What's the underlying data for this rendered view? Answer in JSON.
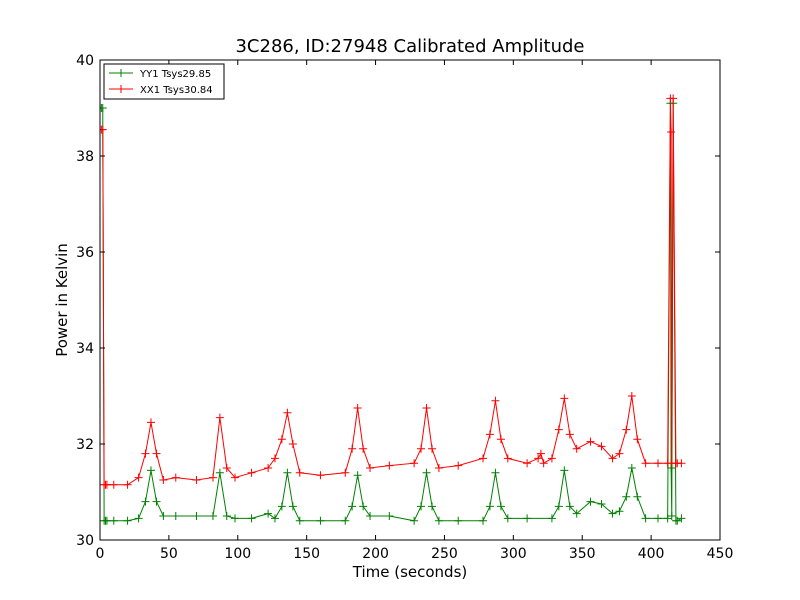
{
  "chart_data": {
    "type": "line",
    "title": "3C286, ID:27948 Calibrated Amplitude",
    "xlabel": "Time (seconds)",
    "ylabel": "Power in Kelvin",
    "xlim": [
      0,
      450
    ],
    "ylim": [
      30,
      40
    ],
    "xticks": [
      0,
      50,
      100,
      150,
      200,
      250,
      300,
      350,
      400,
      450
    ],
    "yticks": [
      30,
      32,
      34,
      36,
      38,
      40
    ],
    "grid": false,
    "legend_position": "top-left",
    "series": [
      {
        "name": "YY1 Tsys29.85",
        "color": "#008000",
        "marker": "+",
        "x": [
          1,
          2,
          3,
          4,
          5,
          10,
          20,
          28,
          33,
          37,
          41,
          46,
          55,
          70,
          82,
          87,
          92,
          98,
          110,
          122,
          127,
          132,
          136,
          140,
          145,
          160,
          178,
          183,
          187,
          191,
          196,
          210,
          228,
          233,
          237,
          241,
          246,
          260,
          278,
          283,
          287,
          291,
          296,
          310,
          328,
          333,
          337,
          341,
          346,
          356,
          364,
          372,
          377,
          382,
          386,
          390,
          396,
          405,
          412,
          414,
          414.5,
          415,
          416,
          418,
          419,
          422
        ],
        "y": [
          39.0,
          39.0,
          30.4,
          30.4,
          30.4,
          30.4,
          30.4,
          30.45,
          30.8,
          31.45,
          30.8,
          30.5,
          30.5,
          30.5,
          30.5,
          31.4,
          30.5,
          30.45,
          30.45,
          30.55,
          30.45,
          30.7,
          31.4,
          30.7,
          30.4,
          30.4,
          30.4,
          30.7,
          31.35,
          30.7,
          30.5,
          30.5,
          30.4,
          30.7,
          31.4,
          30.7,
          30.4,
          30.4,
          30.4,
          30.7,
          31.4,
          30.7,
          30.45,
          30.45,
          30.45,
          30.7,
          31.45,
          30.7,
          30.55,
          30.8,
          30.75,
          30.55,
          30.6,
          30.9,
          31.5,
          30.9,
          30.45,
          30.45,
          30.45,
          39.1,
          31.5,
          30.5,
          39.1,
          30.4,
          30.4,
          30.45
        ]
      },
      {
        "name": "XX1 Tsys30.84",
        "color": "#ff0000",
        "marker": "+",
        "x": [
          1,
          2,
          3,
          4,
          5,
          10,
          20,
          28,
          33,
          37,
          41,
          46,
          55,
          70,
          82,
          87,
          92,
          98,
          110,
          122,
          127,
          132,
          136,
          140,
          145,
          160,
          178,
          183,
          187,
          191,
          196,
          210,
          228,
          233,
          237,
          241,
          246,
          260,
          278,
          283,
          287,
          291,
          296,
          310,
          318,
          320,
          322,
          328,
          333,
          337,
          341,
          346,
          356,
          364,
          372,
          377,
          382,
          386,
          390,
          396,
          405,
          412,
          414,
          414.5,
          415,
          416,
          418,
          419,
          422
        ],
        "y": [
          38.55,
          38.55,
          31.15,
          31.15,
          31.15,
          31.15,
          31.15,
          31.3,
          31.8,
          32.45,
          31.8,
          31.25,
          31.3,
          31.25,
          31.3,
          32.55,
          31.5,
          31.3,
          31.4,
          31.5,
          31.7,
          32.1,
          32.65,
          32.0,
          31.4,
          31.35,
          31.4,
          31.9,
          32.75,
          31.9,
          31.5,
          31.55,
          31.6,
          31.9,
          32.75,
          31.9,
          31.5,
          31.55,
          31.7,
          32.2,
          32.9,
          32.1,
          31.7,
          31.6,
          31.7,
          31.8,
          31.6,
          31.7,
          32.3,
          32.95,
          32.2,
          31.9,
          32.05,
          31.95,
          31.7,
          31.8,
          32.3,
          33.0,
          32.1,
          31.6,
          31.6,
          31.6,
          39.2,
          38.5,
          31.6,
          39.2,
          31.6,
          31.6,
          31.6
        ]
      }
    ]
  }
}
